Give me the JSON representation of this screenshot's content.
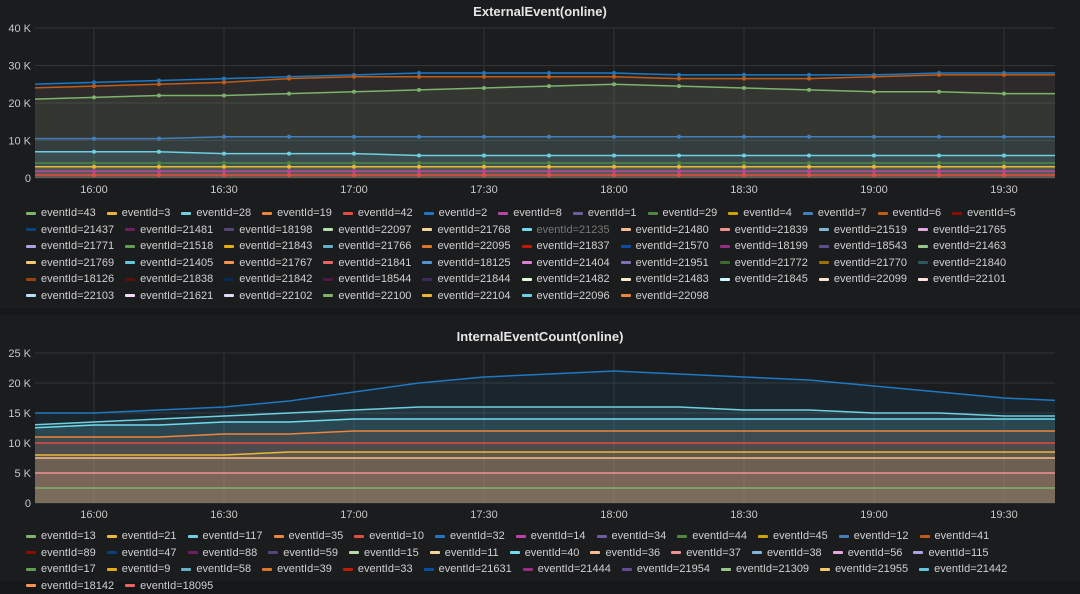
{
  "palette": [
    "#7EB26D",
    "#EAB839",
    "#6ED0E0",
    "#EF843C",
    "#E24D42",
    "#1F78C1",
    "#BA43A9",
    "#705DA0",
    "#508642",
    "#CCA300",
    "#447EBC",
    "#C15C17",
    "#890F02",
    "#0A437C",
    "#6D1F62",
    "#584477",
    "#B7DBAB",
    "#F4D598",
    "#70DBED",
    "#F9BA8F",
    "#F29191",
    "#82B5D8",
    "#E5A8E2",
    "#AEA2E0",
    "#629E51",
    "#E5AC0E",
    "#64B0C8",
    "#E0752D",
    "#BF1B00",
    "#0A50A1",
    "#962D82",
    "#614D93",
    "#9AC48A",
    "#F2C96D",
    "#65C5DB",
    "#F9934E",
    "#EA6460",
    "#5195CE",
    "#D683CE",
    "#806EB7",
    "#3F6833",
    "#967302",
    "#2F575E",
    "#99440A",
    "#58140C",
    "#052B51",
    "#511749",
    "#3F2B5B",
    "#E0F9D7",
    "#FCEACA",
    "#CFFAFF",
    "#F9E2D2",
    "#FCE2DE",
    "#BADFF4",
    "#F9D9F9",
    "#DEDAF7"
  ],
  "chart_data": [
    {
      "type": "line",
      "title": "ExternalEvent(online)",
      "x": [
        "15:45",
        "16:00",
        "16:15",
        "16:30",
        "16:45",
        "17:00",
        "17:15",
        "17:30",
        "17:45",
        "18:00",
        "18:15",
        "18:30",
        "18:45",
        "19:00",
        "19:15",
        "19:30",
        "19:45"
      ],
      "xticks": [
        "16:00",
        "16:30",
        "17:00",
        "17:30",
        "18:00",
        "18:30",
        "19:00",
        "19:30"
      ],
      "yticks": [
        "0",
        "10 K",
        "20 K",
        "30 K",
        "40 K"
      ],
      "ylim": [
        0,
        40000
      ],
      "grid": true,
      "legend_position": "bottom",
      "legend": [
        "eventId=43",
        "eventId=3",
        "eventId=28",
        "eventId=19",
        "eventId=42",
        "eventId=2",
        "eventId=8",
        "eventId=1",
        "eventId=29",
        "eventId=4",
        "eventId=7",
        "eventId=6",
        "eventId=5",
        "eventId=21437",
        "eventId=21481",
        "eventId=18198",
        "eventId=22097",
        "eventId=21768",
        "eventId=21235",
        "eventId=21480",
        "eventId=21839",
        "eventId=21519",
        "eventId=21765",
        "eventId=21771",
        "eventId=21518",
        "eventId=21843",
        "eventId=21766",
        "eventId=22095",
        "eventId=21837",
        "eventId=21570",
        "eventId=18199",
        "eventId=18543",
        "eventId=21463",
        "eventId=21769",
        "eventId=21405",
        "eventId=21767",
        "eventId=21841",
        "eventId=18125",
        "eventId=21404",
        "eventId=21951",
        "eventId=21772",
        "eventId=21770",
        "eventId=21840",
        "eventId=18126",
        "eventId=21838",
        "eventId=21842",
        "eventId=18544",
        "eventId=21844",
        "eventId=21482",
        "eventId=21483",
        "eventId=21845",
        "eventId=22099",
        "eventId=22101",
        "eventId=22103",
        "eventId=21621",
        "eventId=22102",
        "eventId=22100",
        "eventId=22104",
        "eventId=22096",
        "eventId=22098"
      ],
      "hidden_legend": [
        "eventId=21235"
      ],
      "series": [
        {
          "name": "eventId=2",
          "legend_index": 5,
          "values": [
            25000,
            25500,
            26000,
            26500,
            27000,
            27500,
            28000,
            28000,
            28000,
            28000,
            27500,
            27500,
            27500,
            27500,
            28000,
            28000,
            28000
          ]
        },
        {
          "name": "eventId=6",
          "legend_index": 11,
          "values": [
            24000,
            24500,
            25000,
            25500,
            26500,
            27000,
            27000,
            27000,
            27000,
            27000,
            26500,
            26500,
            26500,
            27000,
            27500,
            27500,
            27500
          ]
        },
        {
          "name": "eventId=43",
          "legend_index": 0,
          "values": [
            21000,
            21500,
            22000,
            22000,
            22500,
            23000,
            23500,
            24000,
            24500,
            25000,
            24500,
            24000,
            23500,
            23000,
            23000,
            22500,
            22500
          ]
        },
        {
          "name": "eventId=7",
          "legend_index": 10,
          "values": [
            10500,
            10500,
            10500,
            11000,
            11000,
            11000,
            11000,
            11000,
            11000,
            11000,
            11000,
            11000,
            11000,
            11000,
            11000,
            11000,
            11000
          ]
        },
        {
          "name": "eventId=28",
          "legend_index": 2,
          "values": [
            7000,
            7000,
            7000,
            6500,
            6500,
            6500,
            6000,
            6000,
            6000,
            6000,
            6000,
            6000,
            6000,
            6000,
            6000,
            6000,
            6000
          ]
        },
        {
          "name": "eventId=29",
          "legend_index": 8,
          "values": [
            4000,
            4000,
            4000,
            4000,
            4000,
            4000,
            4000,
            4000,
            4000,
            4000,
            4000,
            4000,
            4000,
            4000,
            4000,
            4000,
            4000
          ]
        },
        {
          "name": "eventId=3",
          "legend_index": 1,
          "values": [
            3000,
            3000,
            3000,
            3000,
            3000,
            3000,
            3000,
            3000,
            3000,
            3000,
            3000,
            3000,
            3000,
            3000,
            3000,
            3000,
            3000
          ]
        },
        {
          "name": "eventId=8",
          "legend_index": 6,
          "values": [
            1800,
            1800,
            1800,
            1800,
            1800,
            1800,
            1800,
            1800,
            1800,
            1800,
            1800,
            1800,
            1800,
            1800,
            1800,
            1800,
            1800
          ]
        },
        {
          "name": "eventId=42",
          "legend_index": 4,
          "values": [
            800,
            800,
            800,
            800,
            800,
            800,
            800,
            800,
            800,
            800,
            800,
            800,
            800,
            800,
            800,
            800,
            800
          ]
        }
      ]
    },
    {
      "type": "area",
      "title": "InternalEventCount(online)",
      "x": [
        "15:45",
        "16:00",
        "16:15",
        "16:30",
        "16:45",
        "17:00",
        "17:15",
        "17:30",
        "17:45",
        "18:00",
        "18:15",
        "18:30",
        "18:45",
        "19:00",
        "19:15",
        "19:30",
        "19:45"
      ],
      "xticks": [
        "16:00",
        "16:30",
        "17:00",
        "17:30",
        "18:00",
        "18:30",
        "19:00",
        "19:30"
      ],
      "yticks": [
        "0",
        "5 K",
        "10 K",
        "15 K",
        "20 K",
        "25 K"
      ],
      "ylim": [
        0,
        25000
      ],
      "grid": true,
      "legend_position": "bottom",
      "legend": [
        "eventId=13",
        "eventId=21",
        "eventId=117",
        "eventId=35",
        "eventId=10",
        "eventId=32",
        "eventId=14",
        "eventId=34",
        "eventId=44",
        "eventId=45",
        "eventId=12",
        "eventId=41",
        "eventId=89",
        "eventId=47",
        "eventId=88",
        "eventId=59",
        "eventId=15",
        "eventId=11",
        "eventId=40",
        "eventId=36",
        "eventId=37",
        "eventId=38",
        "eventId=56",
        "eventId=115",
        "eventId=17",
        "eventId=9",
        "eventId=58",
        "eventId=39",
        "eventId=33",
        "eventId=21631",
        "eventId=21444",
        "eventId=21954",
        "eventId=21309",
        "eventId=21955",
        "eventId=21442",
        "eventId=18142",
        "eventId=18095"
      ],
      "series": [
        {
          "name": "eventId=32",
          "legend_index": 5,
          "values": [
            15000,
            15000,
            15500,
            16000,
            17000,
            18500,
            20000,
            21000,
            21500,
            22000,
            21500,
            21000,
            20500,
            19500,
            18500,
            17500,
            17000
          ]
        },
        {
          "name": "eventId=117",
          "legend_index": 2,
          "values": [
            13000,
            13500,
            14000,
            14500,
            15000,
            15500,
            16000,
            16000,
            16000,
            16000,
            16000,
            15500,
            15500,
            15000,
            15000,
            14500,
            14500
          ]
        },
        {
          "name": "eventId=40",
          "legend_index": 18,
          "values": [
            12500,
            13000,
            13000,
            13500,
            13500,
            14000,
            14000,
            14000,
            14000,
            14000,
            14000,
            14000,
            14000,
            14000,
            14000,
            14000,
            14000
          ]
        },
        {
          "name": "eventId=35",
          "legend_index": 3,
          "values": [
            11000,
            11000,
            11000,
            11500,
            11500,
            12000,
            12000,
            12000,
            12000,
            12000,
            12000,
            12000,
            12000,
            12000,
            12000,
            12000,
            12000
          ]
        },
        {
          "name": "eventId=10",
          "legend_index": 4,
          "values": [
            10000,
            10000,
            10000,
            10000,
            10000,
            10000,
            10000,
            10000,
            10000,
            10000,
            10000,
            10000,
            10000,
            10000,
            10000,
            10000,
            10000
          ]
        },
        {
          "name": "eventId=21",
          "legend_index": 1,
          "values": [
            8000,
            8000,
            8000,
            8000,
            8500,
            8500,
            8500,
            8500,
            8500,
            8500,
            8500,
            8500,
            8500,
            8500,
            8500,
            8500,
            8500
          ]
        },
        {
          "name": "eventId=36",
          "legend_index": 19,
          "values": [
            7500,
            7500,
            7500,
            7500,
            7500,
            7500,
            7500,
            7500,
            7500,
            7500,
            7500,
            7500,
            7500,
            7500,
            7500,
            7500,
            7500
          ]
        },
        {
          "name": "eventId=37",
          "legend_index": 20,
          "values": [
            5000,
            5000,
            5000,
            5000,
            5000,
            5000,
            5000,
            5000,
            5000,
            5000,
            5000,
            5000,
            5000,
            5000,
            5000,
            5000,
            5000
          ]
        },
        {
          "name": "eventId=13",
          "legend_index": 0,
          "values": [
            2500,
            2500,
            2500,
            2500,
            2500,
            2500,
            2500,
            2500,
            2500,
            2500,
            2500,
            2500,
            2500,
            2500,
            2500,
            2500,
            2500
          ]
        }
      ]
    }
  ]
}
